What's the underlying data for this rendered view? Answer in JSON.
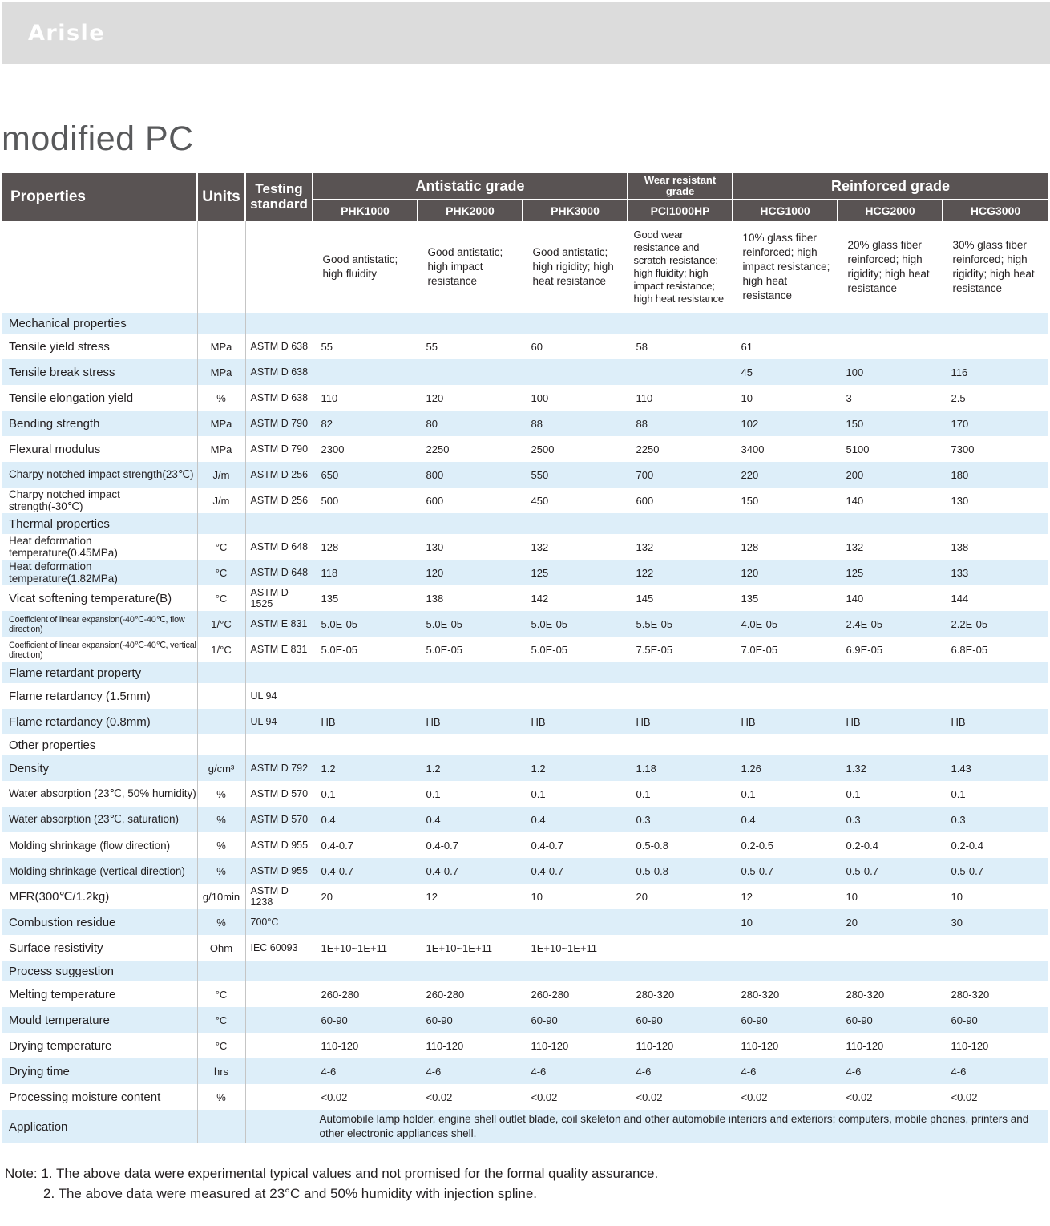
{
  "brand": "Arisle",
  "title": "modified PC",
  "table": {
    "header": {
      "properties": "Properties",
      "units": "Units",
      "standard": "Testing standard",
      "groups": [
        {
          "label": "Antistatic grade",
          "grades": [
            "PHK1000",
            "PHK2000",
            "PHK3000"
          ]
        },
        {
          "label": "Wear resistant grade",
          "grades": [
            "PCI1000HP"
          ]
        },
        {
          "label": "Reinforced grade",
          "grades": [
            "HCG1000",
            "HCG2000",
            "HCG3000"
          ]
        }
      ]
    },
    "descriptions": [
      "Good antistatic; high fluidity",
      "Good antistatic; high impact resistance",
      "Good antistatic; high rigidity; high heat resistance",
      "Good wear resistance and scratch-resistance; high fluidity; high impact resistance; high heat resistance",
      "10% glass fiber reinforced; high impact resistance; high heat resistance",
      "20% glass fiber reinforced; high rigidity; high heat resistance",
      "30% glass fiber reinforced; high rigidity; high heat resistance"
    ],
    "rows": [
      {
        "type": "section",
        "label": "Mechanical properties"
      },
      {
        "type": "data",
        "label": "Tensile yield stress",
        "unit": "MPa",
        "standard": "ASTM D 638",
        "values": [
          "55",
          "55",
          "60",
          "58",
          "61",
          "",
          ""
        ]
      },
      {
        "type": "data",
        "label": "Tensile break stress",
        "unit": "MPa",
        "standard": "ASTM D 638",
        "values": [
          "",
          "",
          "",
          "",
          "45",
          "100",
          "116"
        ]
      },
      {
        "type": "data",
        "label": "Tensile elongation yield",
        "unit": "%",
        "standard": "ASTM D 638",
        "values": [
          "110",
          "120",
          "100",
          "110",
          "10",
          "3",
          "2.5"
        ]
      },
      {
        "type": "data",
        "label": "Bending strength",
        "unit": "MPa",
        "standard": "ASTM D 790",
        "values": [
          "82",
          "80",
          "88",
          "88",
          "102",
          "150",
          "170"
        ]
      },
      {
        "type": "data",
        "label": "Flexural modulus",
        "unit": "MPa",
        "standard": "ASTM D 790",
        "values": [
          "2300",
          "2250",
          "2500",
          "2250",
          "3400",
          "5100",
          "7300"
        ]
      },
      {
        "type": "data",
        "label": "Charpy notched impact strength(23℃)",
        "unit": "J/m",
        "standard": "ASTM D 256",
        "values": [
          "650",
          "800",
          "550",
          "700",
          "220",
          "200",
          "180"
        ]
      },
      {
        "type": "data",
        "label": "Charpy notched impact strength(-30℃)",
        "unit": "J/m",
        "standard": "ASTM D 256",
        "values": [
          "500",
          "600",
          "450",
          "600",
          "150",
          "140",
          "130"
        ]
      },
      {
        "type": "section",
        "label": "Thermal properties"
      },
      {
        "type": "data",
        "label": "Heat deformation temperature(0.45MPa)",
        "unit": "°C",
        "standard": "ASTM D 648",
        "values": [
          "128",
          "130",
          "132",
          "132",
          "128",
          "132",
          "138"
        ]
      },
      {
        "type": "data",
        "label": "Heat deformation temperature(1.82MPa)",
        "unit": "°C",
        "standard": "ASTM D 648",
        "values": [
          "118",
          "120",
          "125",
          "122",
          "120",
          "125",
          "133"
        ]
      },
      {
        "type": "data",
        "label": "Vicat softening temperature(B)",
        "unit": "°C",
        "standard": "ASTM D 1525",
        "values": [
          "135",
          "138",
          "142",
          "145",
          "135",
          "140",
          "144"
        ]
      },
      {
        "type": "data",
        "label": "Coefficient of linear expansion(-40℃-40℃, flow direction)",
        "unit": "1/°C",
        "standard": "ASTM E 831",
        "values": [
          "5.0E-05",
          "5.0E-05",
          "5.0E-05",
          "5.5E-05",
          "4.0E-05",
          "2.4E-05",
          "2.2E-05"
        ]
      },
      {
        "type": "data",
        "label": "Coefficient of linear expansion(-40℃-40℃, vertical direction)",
        "unit": "1/°C",
        "standard": "ASTM E 831",
        "values": [
          "5.0E-05",
          "5.0E-05",
          "5.0E-05",
          "7.5E-05",
          "7.0E-05",
          "6.9E-05",
          "6.8E-05"
        ]
      },
      {
        "type": "section",
        "label": "Flame retardant property"
      },
      {
        "type": "data",
        "label": "Flame retardancy (1.5mm)",
        "unit": "",
        "standard": "UL 94",
        "values": [
          "",
          "",
          "",
          "",
          "",
          "",
          ""
        ]
      },
      {
        "type": "data",
        "label": "Flame retardancy (0.8mm)",
        "unit": "",
        "standard": "UL 94",
        "values": [
          "HB",
          "HB",
          "HB",
          "HB",
          "HB",
          "HB",
          "HB"
        ]
      },
      {
        "type": "section",
        "label": "Other properties"
      },
      {
        "type": "data",
        "label": "Density",
        "unit": "g/cm³",
        "standard": "ASTM D 792",
        "values": [
          "1.2",
          "1.2",
          "1.2",
          "1.18",
          "1.26",
          "1.32",
          "1.43"
        ]
      },
      {
        "type": "data",
        "label": "Water absorption (23℃, 50% humidity)",
        "unit": "%",
        "standard": "ASTM D 570",
        "values": [
          "0.1",
          "0.1",
          "0.1",
          "0.1",
          "0.1",
          "0.1",
          "0.1"
        ]
      },
      {
        "type": "data",
        "label": "Water absorption (23℃, saturation)",
        "unit": "%",
        "standard": "ASTM D 570",
        "values": [
          "0.4",
          "0.4",
          "0.4",
          "0.3",
          "0.4",
          "0.3",
          "0.3"
        ]
      },
      {
        "type": "data",
        "label": "Molding shrinkage (flow direction)",
        "unit": "%",
        "standard": "ASTM D 955",
        "values": [
          "0.4-0.7",
          "0.4-0.7",
          "0.4-0.7",
          "0.5-0.8",
          "0.2-0.5",
          "0.2-0.4",
          "0.2-0.4"
        ]
      },
      {
        "type": "data",
        "label": "Molding shrinkage (vertical direction)",
        "unit": "%",
        "standard": "ASTM D 955",
        "values": [
          "0.4-0.7",
          "0.4-0.7",
          "0.4-0.7",
          "0.5-0.8",
          "0.5-0.7",
          "0.5-0.7",
          "0.5-0.7"
        ]
      },
      {
        "type": "data",
        "label": "MFR(300℃/1.2kg)",
        "unit": "g/10min",
        "standard": "ASTM D 1238",
        "values": [
          "20",
          "12",
          "10",
          "20",
          "12",
          "10",
          "10"
        ]
      },
      {
        "type": "data",
        "label": "Combustion residue",
        "unit": "%",
        "standard": "700°C",
        "values": [
          "",
          "",
          "",
          "",
          "10",
          "20",
          "30"
        ]
      },
      {
        "type": "data",
        "label": "Surface resistivity",
        "unit": "Ohm",
        "standard": "IEC 60093",
        "values": [
          "1E+10~1E+11",
          "1E+10~1E+11",
          "1E+10~1E+11",
          "",
          "",
          "",
          ""
        ]
      },
      {
        "type": "section",
        "label": "Process suggestion"
      },
      {
        "type": "data",
        "label": "Melting temperature",
        "unit": "°C",
        "standard": "",
        "values": [
          "260-280",
          "260-280",
          "260-280",
          "280-320",
          "280-320",
          "280-320",
          "280-320"
        ]
      },
      {
        "type": "data",
        "label": "Mould temperature",
        "unit": "°C",
        "standard": "",
        "values": [
          "60-90",
          "60-90",
          "60-90",
          "60-90",
          "60-90",
          "60-90",
          "60-90"
        ]
      },
      {
        "type": "data",
        "label": "Drying temperature",
        "unit": "°C",
        "standard": "",
        "values": [
          "110-120",
          "110-120",
          "110-120",
          "110-120",
          "110-120",
          "110-120",
          "110-120"
        ]
      },
      {
        "type": "data",
        "label": "Drying time",
        "unit": "hrs",
        "standard": "",
        "values": [
          "4-6",
          "4-6",
          "4-6",
          "4-6",
          "4-6",
          "4-6",
          "4-6"
        ]
      },
      {
        "type": "data",
        "label": "Processing moisture content",
        "unit": "%",
        "standard": "",
        "values": [
          "<0.02",
          "<0.02",
          "<0.02",
          "<0.02",
          "<0.02",
          "<0.02",
          "<0.02"
        ]
      },
      {
        "type": "application",
        "label": "Application",
        "text": "Automobile lamp holder, engine shell outlet blade, coil skeleton and other automobile interiors and exteriors; computers, mobile phones, printers and other electronic appliances shell."
      }
    ]
  },
  "notes": [
    "Note: 1. The above data were experimental typical values and not promised for the formal quality assurance.",
    "2. The above data were measured at 23°C and 50% humidity with injection spline."
  ]
}
